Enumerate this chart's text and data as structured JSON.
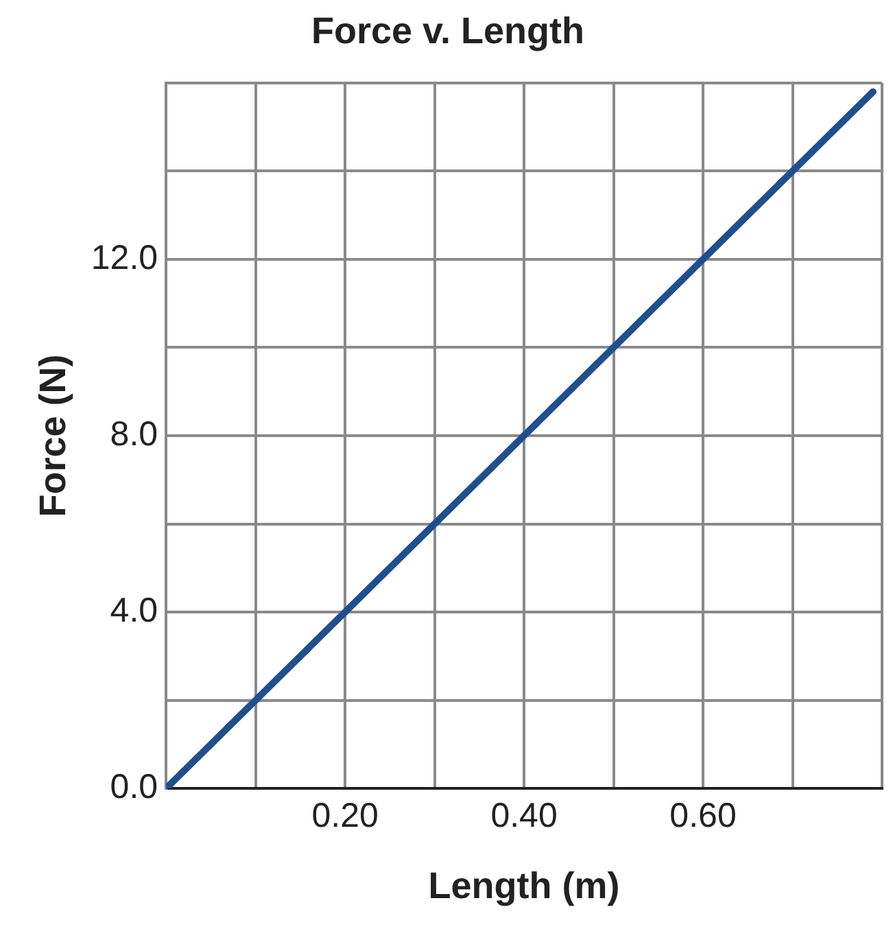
{
  "chart_data": {
    "type": "line",
    "title": "Force v. Length",
    "xlabel": "Length (m)",
    "ylabel": "Force (N)",
    "x": [
      0,
      0.79
    ],
    "series": [
      {
        "color": "#1f4f8f",
        "values": [
          0,
          15.8
        ]
      }
    ],
    "xlim": [
      0,
      0.8
    ],
    "xticks": [
      {
        "value": 0,
        "label": null
      },
      {
        "value": 0.1,
        "label": null
      },
      {
        "value": 0.2,
        "label": "0.20"
      },
      {
        "value": 0.3,
        "label": null
      },
      {
        "value": 0.4,
        "label": "0.40"
      },
      {
        "value": 0.5,
        "label": null
      },
      {
        "value": 0.6,
        "label": "0.60"
      },
      {
        "value": 0.7,
        "label": null
      },
      {
        "value": 0.8,
        "label": null
      }
    ],
    "ylim": [
      0,
      16
    ],
    "yticks": [
      {
        "value": 0,
        "label": "0.0"
      },
      {
        "value": 2,
        "label": null
      },
      {
        "value": 4,
        "label": "4.0"
      },
      {
        "value": 6,
        "label": null
      },
      {
        "value": 8,
        "label": "8.0"
      },
      {
        "value": 10,
        "label": null
      },
      {
        "value": 12,
        "label": "12.0"
      },
      {
        "value": 14,
        "label": null
      },
      {
        "value": 16,
        "label": null
      }
    ],
    "grid": true,
    "marker": "none",
    "line_style": "solid",
    "legend": false
  }
}
